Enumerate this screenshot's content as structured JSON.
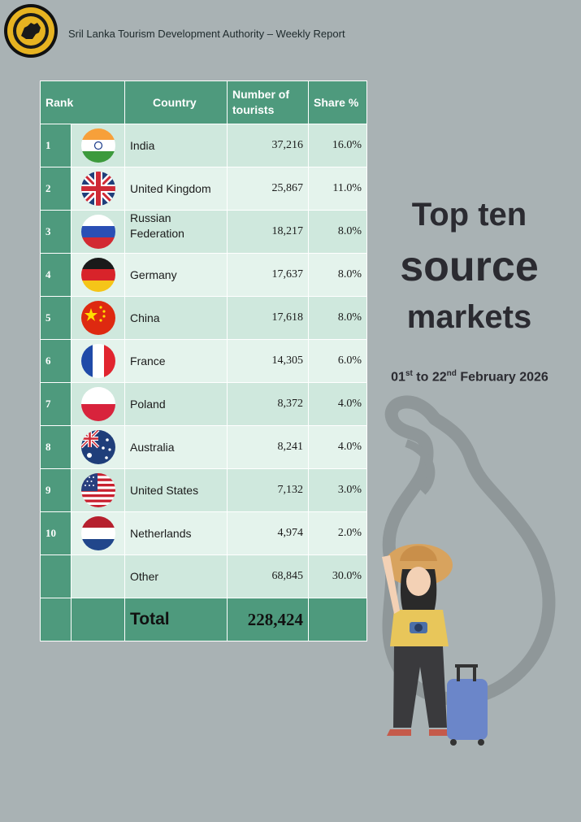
{
  "header": {
    "title": "Sril Lanka Tourism Development Authority – Weekly Report"
  },
  "table": {
    "columns": [
      "Rank",
      "Country",
      "Number of tourists",
      "Share %"
    ],
    "rows": [
      {
        "rank": "1",
        "flag": "india-flag",
        "country": "India",
        "tourists": "37,216",
        "share": "16.0%"
      },
      {
        "rank": "2",
        "flag": "united-kingdom-flag",
        "country": "United Kingdom",
        "tourists": "25,867",
        "share": "11.0%"
      },
      {
        "rank": "3",
        "flag": "russia-flag",
        "country": "Russian Federation",
        "tourists": "18,217",
        "share": "8.0%"
      },
      {
        "rank": "4",
        "flag": "germany-flag",
        "country": "Germany",
        "tourists": "17,637",
        "share": "8.0%"
      },
      {
        "rank": "5",
        "flag": "china-flag",
        "country": "China",
        "tourists": "17,618",
        "share": "8.0%"
      },
      {
        "rank": "6",
        "flag": "france-flag",
        "country": "France",
        "tourists": "14,305",
        "share": "6.0%"
      },
      {
        "rank": "7",
        "flag": "poland-flag",
        "country": "Poland",
        "tourists": "8,372",
        "share": "4.0%"
      },
      {
        "rank": "8",
        "flag": "australia-flag",
        "country": "Australia",
        "tourists": "8,241",
        "share": "4.0%"
      },
      {
        "rank": "9",
        "flag": "united-states-flag",
        "country": "United States",
        "tourists": "7,132",
        "share": "3.0%"
      },
      {
        "rank": "10",
        "flag": "netherlands-flag",
        "country": "Netherlands",
        "tourists": "4,974",
        "share": "2.0%"
      }
    ],
    "other": {
      "country": "Other",
      "tourists": "68,845",
      "share": "30.0%"
    },
    "total": {
      "label": "Total",
      "tourists": "228,424"
    }
  },
  "headline": {
    "line1": "Top ten",
    "line2": "source",
    "line3": "markets"
  },
  "date_range": {
    "start_day": "01",
    "start_suffix": "st",
    "middle": " to 22",
    "end_suffix": "nd",
    "end": " February 2026"
  },
  "colors": {
    "background": "#a9b2b4",
    "table_header": "#4e9a7d",
    "row_dark": "#cfe8dd",
    "row_light": "#e4f3ec"
  }
}
